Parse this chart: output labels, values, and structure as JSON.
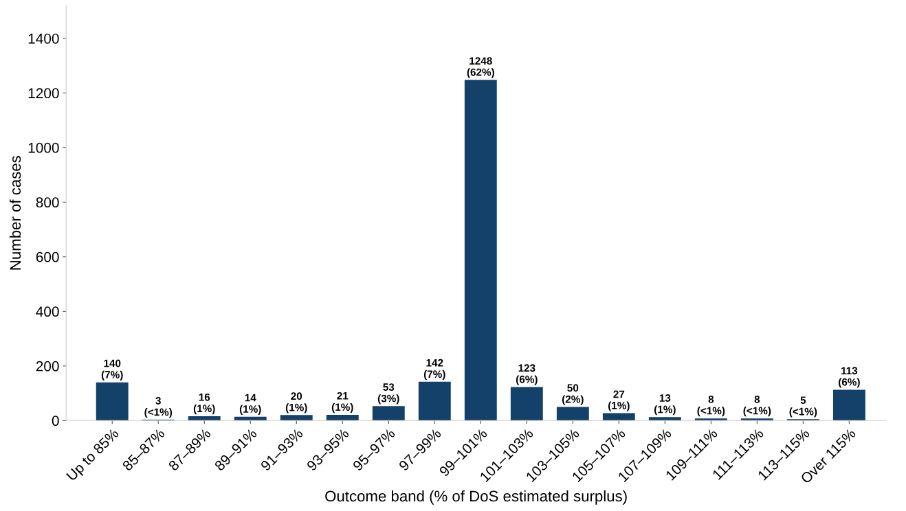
{
  "chart_data": {
    "type": "bar",
    "xlabel": "Outcome band (% of DoS estimated surplus)",
    "ylabel": "Number of cases",
    "categories": [
      "Up to 85%",
      "85–87%",
      "87–89%",
      "89–91%",
      "91–93%",
      "93–95%",
      "95–97%",
      "97–99%",
      "99–101%",
      "101–103%",
      "103–105%",
      "105–107%",
      "107–109%",
      "109–111%",
      "111–113%",
      "113–115%",
      "Over 115%"
    ],
    "values": [
      140,
      3,
      16,
      14,
      20,
      21,
      53,
      142,
      1248,
      123,
      50,
      27,
      13,
      8,
      8,
      5,
      113
    ],
    "value_labels": [
      "140\n(7%)",
      "3\n(<1%)",
      "16\n(1%)",
      "14\n(1%)",
      "20\n(1%)",
      "21\n(1%)",
      "53\n(3%)",
      "142\n(7%)",
      "1248\n(62%)",
      "123\n(6%)",
      "50\n(2%)",
      "27\n(1%)",
      "13\n(1%)",
      "8\n(<1%)",
      "8\n(<1%)",
      "5\n(<1%)",
      "113\n(6%)"
    ],
    "color": "#134169",
    "ylim": [
      0,
      1520
    ],
    "yticks": [
      0,
      200,
      400,
      600,
      800,
      1000,
      1200,
      1400
    ],
    "grid": false
  }
}
